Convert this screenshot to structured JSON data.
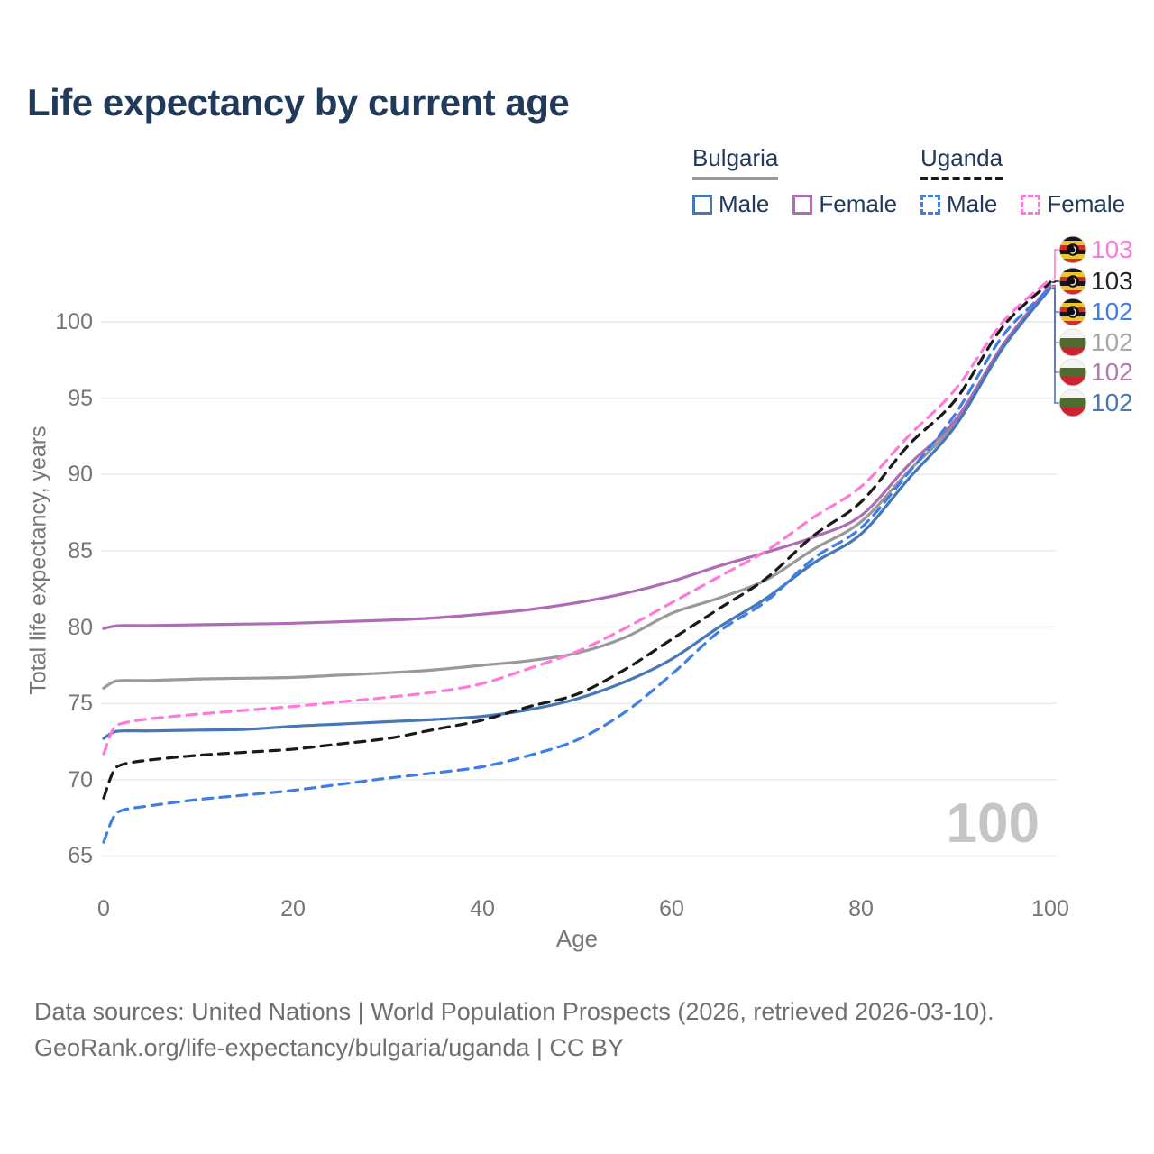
{
  "header": {
    "title": "Life expectancy by current age"
  },
  "legend": {
    "groups": [
      {
        "country": "Bulgaria",
        "line_style": "solid",
        "underline_color": "#999999",
        "items": [
          {
            "label": "Male",
            "color": "#4677b8"
          },
          {
            "label": "Female",
            "color": "#ad6cb3"
          }
        ]
      },
      {
        "country": "Uganda",
        "line_style": "dashed",
        "underline_color": "#1a1a1a",
        "items": [
          {
            "label": "Male",
            "color": "#3f7de8"
          },
          {
            "label": "Female",
            "color": "#ff7ad8"
          }
        ]
      }
    ]
  },
  "watermark": {
    "value": "100"
  },
  "footer": {
    "line1": "Data sources: United Nations | World Population Prospects (2026, retrieved 2026-03-10).",
    "line2": "GeoRank.org/life-expectancy/bulgaria/uganda | CC BY"
  },
  "chart_data": {
    "type": "line",
    "title": "Life expectancy by current age",
    "xlabel": "Age",
    "ylabel": "Total life expectancy, years",
    "xlim": [
      0,
      100
    ],
    "ylim": [
      65,
      103.5
    ],
    "x_ticks": [
      0,
      20,
      40,
      60,
      80,
      100
    ],
    "y_ticks": [
      65,
      70,
      75,
      80,
      85,
      90,
      95,
      100
    ],
    "grid": "horizontal",
    "legend_position": "top-right",
    "hovered_age": "100",
    "ages": [
      0,
      1,
      2,
      5,
      10,
      15,
      20,
      25,
      30,
      35,
      40,
      45,
      50,
      55,
      60,
      65,
      70,
      75,
      80,
      85,
      90,
      95,
      100
    ],
    "series": [
      {
        "name": "Bulgaria Total",
        "id": "bulgaria-total",
        "color": "#999999",
        "dashed": false,
        "flag": "bulgaria",
        "end_label": "102",
        "end_label_color": "#a8a8a8",
        "values": [
          76.0,
          76.4,
          76.5,
          76.5,
          76.6,
          76.65,
          76.7,
          76.85,
          77.0,
          77.2,
          77.5,
          77.8,
          78.3,
          79.3,
          80.9,
          81.9,
          83.1,
          85.1,
          86.9,
          90.2,
          93.4,
          98.4,
          102.3
        ]
      },
      {
        "name": "Bulgaria Female",
        "id": "bulgaria-female",
        "color": "#ad6cb3",
        "dashed": false,
        "flag": "bulgaria",
        "end_label": "102",
        "end_label_color": "#b279b2",
        "values": [
          79.9,
          80.05,
          80.1,
          80.1,
          80.15,
          80.2,
          80.25,
          80.35,
          80.45,
          80.6,
          80.85,
          81.15,
          81.6,
          82.2,
          83.0,
          84.0,
          84.9,
          85.9,
          87.3,
          90.6,
          93.6,
          98.5,
          102.4
        ]
      },
      {
        "name": "Bulgaria Male",
        "id": "bulgaria-male",
        "color": "#4677b8",
        "dashed": false,
        "flag": "bulgaria",
        "end_label": "102",
        "end_label_color": "#4677b8",
        "values": [
          72.7,
          73.1,
          73.2,
          73.2,
          73.25,
          73.3,
          73.5,
          73.65,
          73.8,
          73.95,
          74.15,
          74.6,
          75.3,
          76.4,
          77.9,
          80.0,
          81.9,
          84.2,
          86.1,
          89.7,
          93.2,
          98.3,
          102.2
        ]
      },
      {
        "name": "Uganda Total",
        "id": "uganda-total",
        "color": "#1a1a1a",
        "dashed": true,
        "flag": "uganda",
        "end_label": "103",
        "end_label_color": "#222222",
        "values": [
          68.8,
          70.5,
          71.0,
          71.3,
          71.6,
          71.8,
          72.0,
          72.35,
          72.7,
          73.3,
          73.9,
          74.8,
          75.6,
          77.2,
          79.2,
          81.2,
          83.2,
          86.0,
          88.2,
          91.9,
          94.9,
          99.7,
          102.6
        ]
      },
      {
        "name": "Uganda Male",
        "id": "uganda-male",
        "color": "#3f7de8",
        "dashed": true,
        "flag": "uganda",
        "end_label": "102",
        "end_label_color": "#3f7de8",
        "values": [
          65.9,
          67.5,
          68.0,
          68.3,
          68.7,
          69.0,
          69.3,
          69.7,
          70.1,
          70.45,
          70.85,
          71.6,
          72.6,
          74.4,
          76.9,
          79.7,
          81.7,
          84.5,
          86.5,
          90.1,
          94.0,
          99.1,
          102.2
        ]
      },
      {
        "name": "Uganda Female",
        "id": "uganda-female",
        "color": "#ff7ad8",
        "dashed": true,
        "flag": "uganda",
        "end_label": "103",
        "end_label_color": "#ff7ad8",
        "values": [
          71.7,
          73.3,
          73.7,
          74.0,
          74.3,
          74.55,
          74.8,
          75.1,
          75.4,
          75.75,
          76.3,
          77.3,
          78.4,
          79.9,
          81.6,
          83.3,
          85.0,
          87.2,
          89.2,
          92.5,
          95.6,
          100.0,
          102.8
        ]
      }
    ],
    "right_labels": [
      {
        "series": "Uganda Female",
        "value": "103"
      },
      {
        "series": "Uganda Total",
        "value": "103"
      },
      {
        "series": "Uganda Male",
        "value": "102"
      },
      {
        "series": "Bulgaria Total",
        "value": "102"
      },
      {
        "series": "Bulgaria Female",
        "value": "102"
      },
      {
        "series": "Bulgaria Male",
        "value": "102"
      }
    ]
  }
}
